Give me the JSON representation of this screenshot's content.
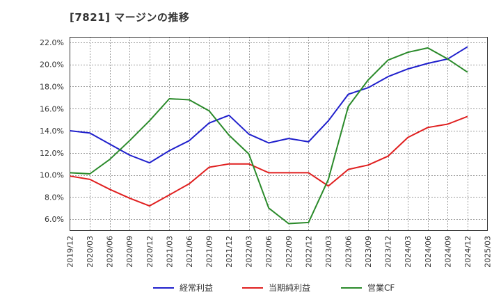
{
  "chart_data": {
    "type": "line",
    "title": "[7821]  マージンの推移",
    "xlabel": "",
    "ylabel": "",
    "ylim": [
      5.0,
      22.5
    ],
    "yticks": [
      6.0,
      8.0,
      10.0,
      12.0,
      14.0,
      16.0,
      18.0,
      20.0,
      22.0
    ],
    "ytick_labels": [
      "6.0%",
      "8.0%",
      "10.0%",
      "12.0%",
      "14.0%",
      "16.0%",
      "18.0%",
      "20.0%",
      "22.0%"
    ],
    "categories": [
      "2019/12",
      "2020/03",
      "2020/06",
      "2020/09",
      "2020/12",
      "2021/03",
      "2021/06",
      "2021/09",
      "2021/12",
      "2022/03",
      "2022/06",
      "2022/09",
      "2022/12",
      "2023/03",
      "2023/06",
      "2023/09",
      "2023/12",
      "2024/03",
      "2024/06",
      "2024/09",
      "2024/12",
      "2025/03"
    ],
    "grid": true,
    "legend_position": "bottom",
    "series": [
      {
        "name": "経常利益",
        "color": "#1f1fcc",
        "values": [
          14.0,
          13.8,
          12.8,
          11.8,
          11.1,
          12.2,
          13.1,
          14.7,
          15.4,
          13.7,
          12.9,
          13.3,
          13.0,
          14.9,
          17.3,
          17.9,
          18.9,
          19.6,
          20.1,
          20.5,
          21.6,
          null
        ]
      },
      {
        "name": "当期純利益",
        "color": "#e01f1f",
        "values": [
          9.9,
          9.6,
          8.7,
          7.9,
          7.2,
          8.2,
          9.2,
          10.7,
          11.0,
          11.0,
          10.2,
          10.2,
          10.2,
          9.0,
          10.5,
          10.9,
          11.7,
          13.4,
          14.3,
          14.6,
          15.3,
          null
        ]
      },
      {
        "name": "営業CF",
        "color": "#2a8a2a",
        "values": [
          10.2,
          10.1,
          11.4,
          13.1,
          14.9,
          16.9,
          16.8,
          15.8,
          13.6,
          11.9,
          7.0,
          5.6,
          5.7,
          9.6,
          16.2,
          18.6,
          20.4,
          21.1,
          21.5,
          20.5,
          19.3,
          null
        ]
      }
    ]
  }
}
